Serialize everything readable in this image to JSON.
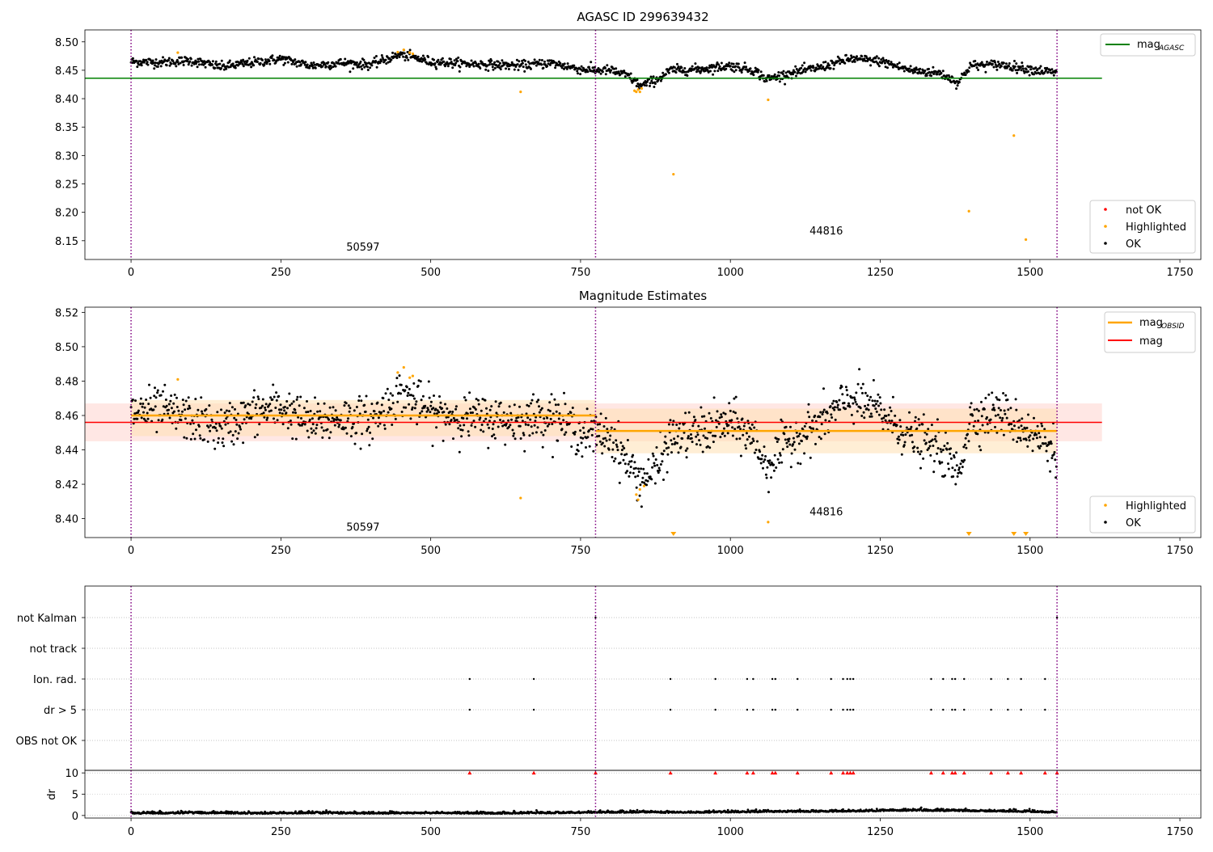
{
  "chart_data": [
    {
      "type": "scatter",
      "title": "AGASC ID 299639432",
      "xlim": [
        -77,
        1785
      ],
      "ylim": [
        8.117,
        8.521
      ],
      "xticks": [
        "0",
        "250",
        "500",
        "750",
        "1000",
        "1250",
        "1500",
        "1750"
      ],
      "yticks": [
        "8.15",
        "8.20",
        "8.25",
        "8.30",
        "8.35",
        "8.40",
        "8.45",
        "8.50"
      ],
      "vlines": [
        0,
        775,
        1545
      ],
      "obsid_labels": [
        {
          "text": "50597",
          "x": 387,
          "y": 8.133
        },
        {
          "text": "44816",
          "x": 1160,
          "y": 8.161
        }
      ],
      "hlines": [
        {
          "name": "mag$_{AGASC}$",
          "y": 8.436,
          "x": [
            -77,
            1620
          ],
          "color": "#008000"
        }
      ],
      "legend_lines": [
        "mag",
        "AGASC"
      ],
      "legend_points": [
        "not OK",
        "Highlighted",
        "OK"
      ],
      "colors": {
        "ok": "#000000",
        "highlighted": "#ffa500",
        "not_ok": "#ff0000",
        "agasc": "#008000",
        "vline": "#800080"
      },
      "highlighted_points": [
        [
          78,
          8.481
        ],
        [
          445,
          8.482
        ],
        [
          455,
          8.486
        ],
        [
          465,
          8.481
        ],
        [
          470,
          8.479
        ],
        [
          650,
          8.412
        ],
        [
          840,
          8.414
        ],
        [
          843,
          8.412
        ],
        [
          846,
          8.416
        ],
        [
          849,
          8.412
        ],
        [
          852,
          8.418
        ],
        [
          905,
          8.267
        ],
        [
          1063,
          8.398
        ],
        [
          1398,
          8.202
        ],
        [
          1473,
          8.335
        ],
        [
          1493,
          8.152
        ]
      ],
      "ok_trend": [
        [
          0,
          8.465
        ],
        [
          50,
          8.464
        ],
        [
          100,
          8.467
        ],
        [
          150,
          8.456
        ],
        [
          200,
          8.463
        ],
        [
          250,
          8.47
        ],
        [
          300,
          8.458
        ],
        [
          350,
          8.463
        ],
        [
          400,
          8.46
        ],
        [
          450,
          8.478
        ],
        [
          500,
          8.465
        ],
        [
          550,
          8.462
        ],
        [
          600,
          8.46
        ],
        [
          650,
          8.458
        ],
        [
          700,
          8.463
        ],
        [
          750,
          8.452
        ],
        [
          775,
          8.45
        ],
        [
          800,
          8.45
        ],
        [
          830,
          8.44
        ],
        [
          850,
          8.422
        ],
        [
          880,
          8.435
        ],
        [
          900,
          8.45
        ],
        [
          950,
          8.452
        ],
        [
          1000,
          8.458
        ],
        [
          1040,
          8.45
        ],
        [
          1060,
          8.434
        ],
        [
          1100,
          8.445
        ],
        [
          1150,
          8.455
        ],
        [
          1200,
          8.47
        ],
        [
          1250,
          8.466
        ],
        [
          1300,
          8.45
        ],
        [
          1350,
          8.445
        ],
        [
          1380,
          8.428
        ],
        [
          1400,
          8.458
        ],
        [
          1450,
          8.46
        ],
        [
          1500,
          8.452
        ],
        [
          1545,
          8.445
        ]
      ]
    },
    {
      "type": "scatter",
      "title": "Magnitude Estimates",
      "xlim": [
        -77,
        1785
      ],
      "ylim": [
        8.389,
        8.523
      ],
      "xticks": [
        "0",
        "250",
        "500",
        "750",
        "1000",
        "1250",
        "1500",
        "1750"
      ],
      "yticks": [
        "8.40",
        "8.42",
        "8.44",
        "8.46",
        "8.48",
        "8.50",
        "8.52"
      ],
      "vlines": [
        0,
        775,
        1545
      ],
      "obsid_labels": [
        {
          "text": "50597",
          "x": 387,
          "y": 8.393
        },
        {
          "text": "44816",
          "x": 1160,
          "y": 8.402
        }
      ],
      "mag": {
        "y": 8.456,
        "band": [
          8.445,
          8.467
        ],
        "x": [
          -77,
          1620
        ],
        "color": "#ff0000",
        "band_color": "#ffe4e1"
      },
      "mag_obsid": [
        {
          "x": [
            0,
            775
          ],
          "y": 8.46,
          "band": [
            8.448,
            8.469
          ]
        },
        {
          "x": [
            775,
            1545
          ],
          "y": 8.451,
          "band": [
            8.438,
            8.464
          ]
        }
      ],
      "legend_lines": [
        "mag",
        "OBSID",
        "mag"
      ],
      "legend_points": [
        "Highlighted",
        "OK"
      ],
      "colors": {
        "ok": "#000000",
        "highlighted": "#ffa500",
        "mag_obsid": "#ffa500",
        "obsid_band": "#ffe0b3",
        "vline": "#800080"
      },
      "highlighted_points": [
        [
          78,
          8.481
        ],
        [
          445,
          8.485
        ],
        [
          455,
          8.488
        ],
        [
          465,
          8.482
        ],
        [
          470,
          8.483
        ],
        [
          650,
          8.412
        ],
        [
          843,
          8.414
        ],
        [
          846,
          8.411
        ],
        [
          849,
          8.417
        ],
        [
          856,
          8.419
        ],
        [
          1063,
          8.398
        ]
      ],
      "offscale_markers": [
        905,
        1398,
        1473,
        1493
      ],
      "ok_trend": [
        [
          0,
          8.462
        ],
        [
          50,
          8.463
        ],
        [
          100,
          8.458
        ],
        [
          150,
          8.452
        ],
        [
          200,
          8.461
        ],
        [
          250,
          8.465
        ],
        [
          300,
          8.455
        ],
        [
          350,
          8.459
        ],
        [
          400,
          8.457
        ],
        [
          450,
          8.473
        ],
        [
          500,
          8.462
        ],
        [
          550,
          8.459
        ],
        [
          600,
          8.458
        ],
        [
          650,
          8.457
        ],
        [
          700,
          8.461
        ],
        [
          750,
          8.45
        ],
        [
          775,
          8.449
        ],
        [
          800,
          8.448
        ],
        [
          830,
          8.432
        ],
        [
          850,
          8.422
        ],
        [
          880,
          8.43
        ],
        [
          900,
          8.447
        ],
        [
          950,
          8.45
        ],
        [
          1000,
          8.456
        ],
        [
          1040,
          8.447
        ],
        [
          1060,
          8.43
        ],
        [
          1100,
          8.446
        ],
        [
          1150,
          8.455
        ],
        [
          1200,
          8.47
        ],
        [
          1250,
          8.462
        ],
        [
          1300,
          8.448
        ],
        [
          1350,
          8.44
        ],
        [
          1380,
          8.426
        ],
        [
          1400,
          8.458
        ],
        [
          1450,
          8.462
        ],
        [
          1500,
          8.45
        ],
        [
          1545,
          8.44
        ]
      ]
    },
    {
      "type": "scatter",
      "title": "",
      "xlim": [
        -77,
        1785
      ],
      "xticks": [
        "0",
        "250",
        "500",
        "750",
        "1000",
        "1250",
        "1500",
        "1750"
      ],
      "categories": [
        "not Kalman",
        "not track",
        "Ion. rad.",
        "dr > 5",
        "OBS not OK"
      ],
      "vlines": [
        0,
        775,
        1545
      ],
      "flag_x": [
        565,
        672,
        900,
        975,
        1028,
        1038,
        1070,
        1075,
        1112,
        1168,
        1188,
        1195,
        1200,
        1205,
        1335,
        1355,
        1370,
        1375,
        1390,
        1435,
        1463,
        1485,
        1525
      ],
      "not_kalman_x": [
        775,
        1545
      ],
      "colors": {
        "points": "#000000",
        "grid": "#b0b0b0",
        "vline": "#800080"
      }
    },
    {
      "type": "scatter",
      "title": "",
      "ylabel": "dr",
      "xlim": [
        -77,
        1785
      ],
      "ylim": [
        -0.6,
        10.6
      ],
      "xticks": [
        "0",
        "250",
        "500",
        "750",
        "1000",
        "1250",
        "1500",
        "1750"
      ],
      "yticks": [
        "0",
        "5",
        "10"
      ],
      "vlines": [
        0,
        775,
        1545
      ],
      "clipped_x": [
        565,
        672,
        775,
        900,
        975,
        1028,
        1038,
        1070,
        1075,
        1112,
        1168,
        1188,
        1195,
        1200,
        1205,
        1335,
        1355,
        1370,
        1375,
        1390,
        1435,
        1463,
        1485,
        1525,
        1545
      ],
      "dr_trend": [
        [
          0,
          0.5
        ],
        [
          100,
          0.6
        ],
        [
          200,
          0.5
        ],
        [
          300,
          0.6
        ],
        [
          400,
          0.5
        ],
        [
          500,
          0.6
        ],
        [
          600,
          0.5
        ],
        [
          700,
          0.6
        ],
        [
          775,
          0.7
        ],
        [
          850,
          0.8
        ],
        [
          900,
          0.7
        ],
        [
          1000,
          0.8
        ],
        [
          1100,
          0.9
        ],
        [
          1200,
          1.0
        ],
        [
          1300,
          1.2
        ],
        [
          1400,
          1.1
        ],
        [
          1500,
          0.9
        ],
        [
          1545,
          0.7
        ]
      ],
      "colors": {
        "points": "#000000",
        "clipped": "#ff0000",
        "vline": "#800080"
      }
    }
  ]
}
